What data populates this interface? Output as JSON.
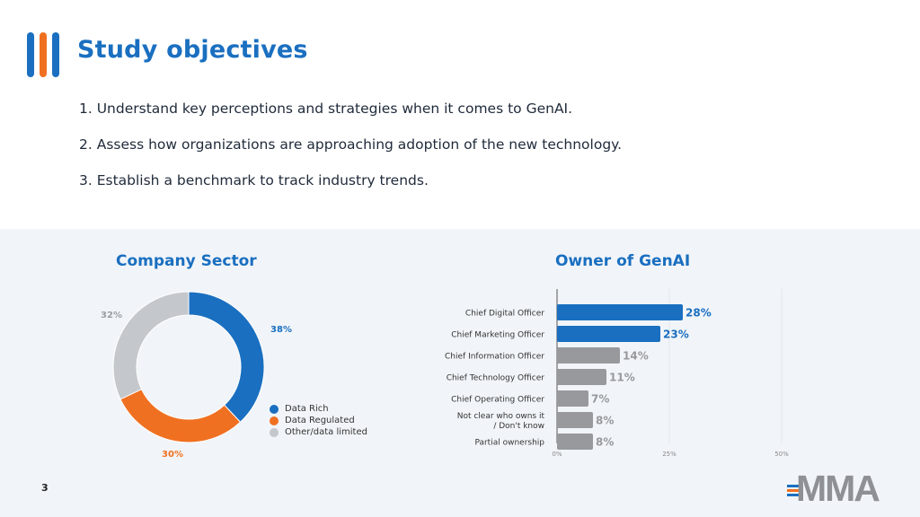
{
  "slide": {
    "title": "Study objectives",
    "page_number": "3",
    "logo_text": "MMA",
    "accent_colors": [
      "#1a6fc0",
      "#f07021",
      "#1a6fc0"
    ],
    "objectives": [
      "1.  Understand key perceptions and strategies when it comes to GenAI.",
      "2. Assess how organizations are approaching adoption of the new technology.",
      "3. Establish a benchmark to track industry trends."
    ]
  },
  "chart_data": [
    {
      "type": "pie",
      "title": "Company Sector",
      "variant": "donut",
      "labels": [
        "Data Rich",
        "Data Regulated",
        "Other/data limited"
      ],
      "values": [
        38,
        30,
        32
      ],
      "value_labels": [
        "38%",
        "30%",
        "32%"
      ],
      "colors": [
        "#1a6fc0",
        "#f07021",
        "#c4c7cb"
      ],
      "legend": "right"
    },
    {
      "type": "bar",
      "orientation": "horizontal",
      "title": "Owner of GenAI",
      "categories": [
        "Chief Digital Officer",
        "Chief Marketing Officer",
        "Chief Information Officer",
        "Chief Technology Officer",
        "Chief Operating Officer",
        [
          "Not clear who owns it",
          "/ Don't know"
        ],
        "Partial ownership"
      ],
      "values": [
        28,
        23,
        14,
        11,
        7,
        8,
        8
      ],
      "value_labels": [
        "28%",
        "23%",
        "14%",
        "11%",
        "7%",
        "8%",
        "8%"
      ],
      "colors": [
        "#1a6fc0",
        "#1a6fc0",
        "#97999c",
        "#97999c",
        "#97999c",
        "#97999c",
        "#97999c"
      ],
      "xlim": [
        0,
        50
      ],
      "xticks": [
        "0%",
        "25%",
        "50%"
      ]
    }
  ]
}
